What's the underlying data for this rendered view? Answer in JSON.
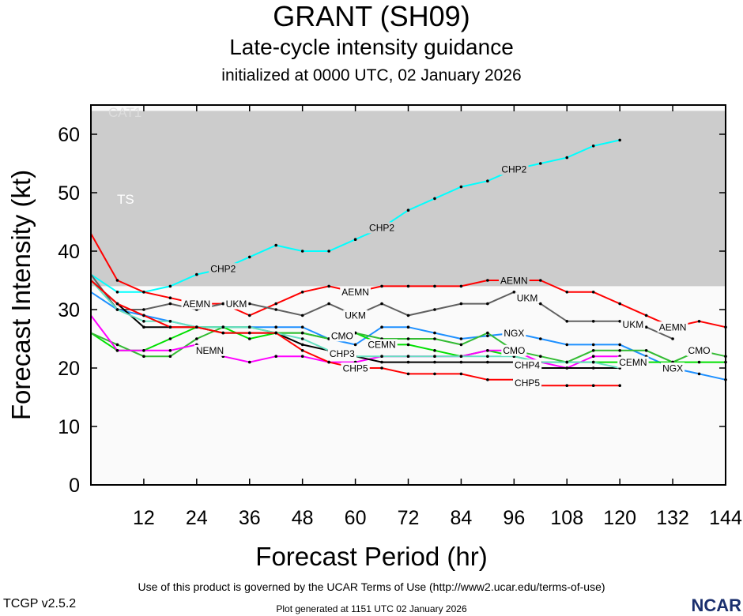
{
  "header": {
    "title": "GRANT (SH09)",
    "subtitle": "Late-cycle intensity guidance",
    "initialized": "initialized at 0000 UTC, 02 January 2026"
  },
  "footer": {
    "terms": "Use of this product is governed by the UCAR Terms of Use (http://www2.ucar.edu/terms-of-use)",
    "generated": "Plot generated at 1151 UTC   02 January 2026",
    "version": "TCGP v2.5.2",
    "logo": "NCAR"
  },
  "chart_data": {
    "type": "line",
    "xlabel": "Forecast Period (hr)",
    "ylabel": "Forecast Intensity (kt)",
    "xlim": [
      0,
      144
    ],
    "ylim": [
      0,
      65
    ],
    "xticks": [
      12,
      24,
      36,
      48,
      60,
      72,
      84,
      96,
      108,
      120,
      132,
      144
    ],
    "yticks": [
      0,
      10,
      20,
      30,
      40,
      50,
      60
    ],
    "grid": false,
    "bands": [
      {
        "label": "TS",
        "from": 34,
        "to": 64,
        "color": "#cccccc"
      },
      {
        "label": "CAT1",
        "from": 64,
        "to": 65,
        "color": "#ffffff"
      }
    ],
    "below_band_color": "#fafafa",
    "series": [
      {
        "name": "CHP2",
        "color": "#00ffff",
        "x": [
          0,
          6,
          12,
          18,
          24,
          30,
          36,
          42,
          48,
          54,
          60,
          66,
          72,
          78,
          84,
          90,
          96,
          102,
          108,
          114,
          120
        ],
        "y": [
          36,
          33,
          33,
          34,
          36,
          37,
          39,
          41,
          40,
          40,
          42,
          44,
          47,
          49,
          51,
          52,
          54,
          55,
          56,
          58,
          59
        ],
        "labels_at": [
          30,
          66,
          96
        ]
      },
      {
        "name": "AEMN",
        "color": "#ff0000",
        "x": [
          0,
          6,
          12,
          18,
          24,
          30,
          36,
          42,
          48,
          54,
          60,
          66,
          72,
          78,
          84,
          90,
          96,
          102,
          108,
          114,
          120,
          126,
          132,
          138,
          144
        ],
        "y": [
          43,
          35,
          33,
          32,
          31,
          31,
          29,
          31,
          33,
          34,
          33,
          34,
          34,
          34,
          34,
          35,
          35,
          35,
          33,
          33,
          31,
          29,
          27,
          28,
          27
        ],
        "labels_at": [
          24,
          60,
          96,
          132
        ]
      },
      {
        "name": "UKM",
        "color": "#606060",
        "x": [
          0,
          6,
          12,
          18,
          24,
          30,
          36,
          42,
          48,
          54,
          60,
          66,
          72,
          78,
          84,
          90,
          96,
          102,
          108,
          114,
          120,
          126,
          132
        ],
        "y": [
          36,
          30,
          30,
          31,
          30,
          31,
          31,
          30,
          29,
          31,
          29,
          31,
          29,
          30,
          31,
          31,
          33,
          31,
          28,
          28,
          28,
          27,
          25
        ],
        "labels_at": [
          27,
          60,
          96,
          129
        ]
      },
      {
        "name": "NGX",
        "color": "#1e90ff",
        "x": [
          0,
          6,
          12,
          18,
          24,
          30,
          36,
          42,
          48,
          54,
          60,
          66,
          72,
          78,
          84,
          90,
          96,
          102,
          108,
          114,
          120,
          126,
          132,
          138,
          144
        ],
        "y": [
          33,
          30,
          29,
          28,
          27,
          27,
          27,
          27,
          27,
          25,
          24,
          27,
          27,
          26,
          25,
          25.5,
          26,
          25,
          24,
          24,
          24,
          22,
          20,
          19,
          18
        ],
        "labels_at": [
          96,
          132
        ]
      },
      {
        "name": "CEMN",
        "color": "#00e000",
        "x": [
          0,
          6,
          12,
          18,
          24,
          30,
          36,
          42,
          48,
          54,
          60,
          66,
          72,
          78,
          84,
          90,
          96,
          102,
          108,
          114,
          120,
          126,
          132,
          138,
          144
        ],
        "y": [
          26,
          23,
          23,
          25,
          27,
          27,
          25,
          26,
          26,
          25,
          26,
          24,
          24,
          23,
          22,
          23,
          22,
          21,
          21,
          21,
          21,
          21,
          21,
          21,
          21
        ],
        "labels_at": [
          66,
          138
        ]
      },
      {
        "name": "CMO",
        "color": "#33bb33",
        "x": [
          0,
          6,
          12,
          18,
          24,
          30,
          36,
          42,
          48,
          54,
          60,
          66,
          72,
          78,
          84,
          90,
          96,
          102,
          108,
          114,
          120,
          126,
          132,
          138,
          144
        ],
        "y": [
          26,
          24,
          22,
          22,
          25,
          27,
          27,
          26,
          26,
          25,
          26,
          25,
          25,
          25,
          24,
          26,
          23,
          22,
          21,
          23,
          23,
          23,
          21,
          23,
          22
        ],
        "labels_at": [
          60,
          96,
          126
        ]
      },
      {
        "name": "NEMN",
        "color": "#ff00ff",
        "x": [
          0,
          6,
          12,
          18,
          24,
          30,
          36,
          42,
          48,
          54,
          60,
          66,
          72,
          78,
          84,
          90,
          96,
          102,
          108,
          114,
          120
        ],
        "y": [
          29,
          23,
          23,
          23,
          24,
          22,
          21,
          22,
          22,
          21,
          21,
          22,
          22,
          22,
          22,
          23,
          23,
          21,
          20,
          22,
          22
        ],
        "labels_at": [
          27
        ]
      },
      {
        "name": "CHP4",
        "color": "#000000",
        "x": [
          0,
          6,
          12,
          18,
          24,
          30,
          36,
          42,
          48,
          54,
          60,
          66,
          72,
          78,
          84,
          90,
          96,
          102,
          108,
          114,
          120
        ],
        "y": [
          35,
          31,
          27,
          27,
          27,
          26,
          26,
          26,
          24,
          23,
          22,
          21,
          21,
          21,
          21,
          21,
          21,
          20,
          20,
          20,
          20
        ],
        "labels_at": [
          99
        ]
      },
      {
        "name": "CHP3",
        "color": "#66e0c0",
        "x": [
          0,
          6,
          12,
          18,
          24,
          30,
          36,
          42,
          48,
          54,
          60,
          66,
          72,
          78,
          84,
          90,
          96,
          102,
          108,
          114,
          120
        ],
        "y": [
          35,
          30,
          28,
          28,
          27,
          27,
          27,
          26,
          25,
          23,
          22,
          22,
          22,
          22,
          22,
          22,
          22,
          21,
          21,
          21,
          20
        ],
        "labels_at": [
          60
        ]
      },
      {
        "name": "CHP5",
        "color": "#ff0000",
        "x": [
          0,
          6,
          12,
          18,
          24,
          30,
          36,
          42,
          48,
          54,
          60,
          66,
          72,
          78,
          84,
          90,
          96,
          102,
          108,
          114,
          120
        ],
        "y": [
          35,
          31,
          29,
          27,
          27,
          26,
          26,
          26,
          23,
          21,
          20,
          20,
          19,
          19,
          19,
          18,
          18,
          17,
          17,
          17,
          17
        ],
        "labels_at": [
          60,
          99
        ]
      }
    ]
  }
}
